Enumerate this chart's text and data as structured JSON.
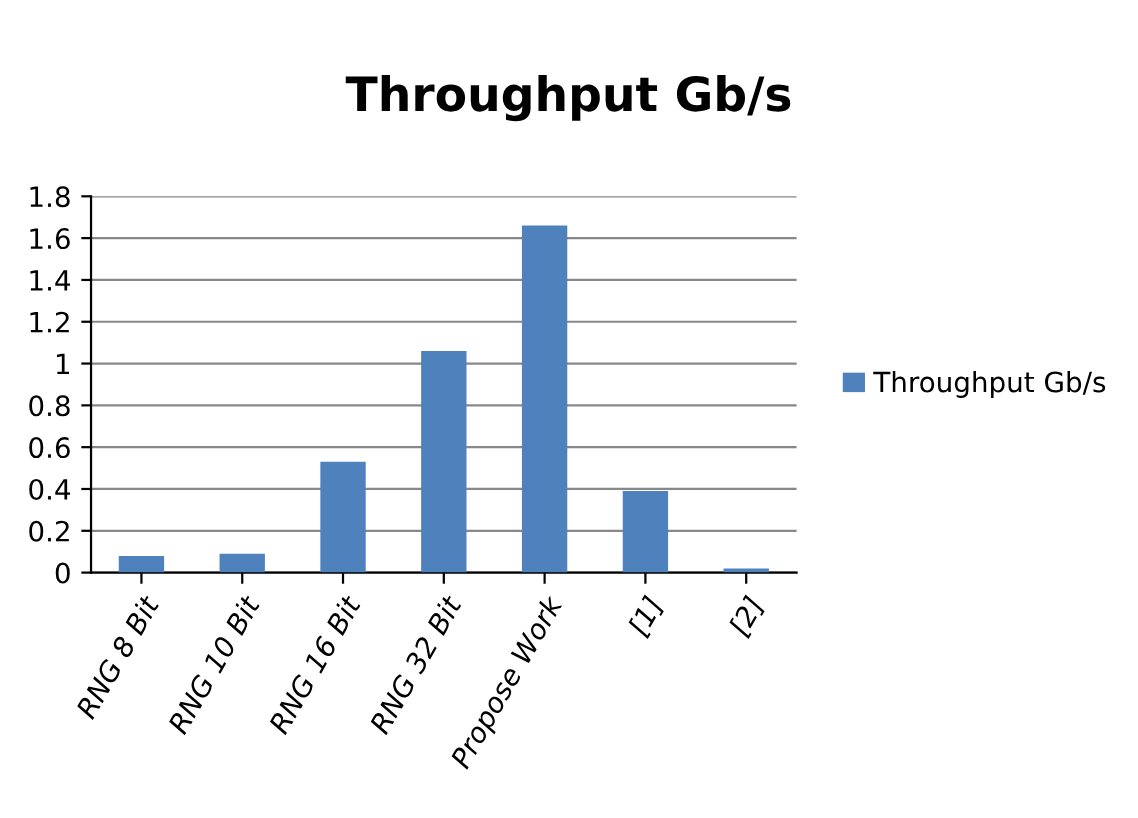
{
  "chart_data": {
    "type": "bar",
    "title": "Throughput Gb/s",
    "categories": [
      "RNG 8 Bit",
      "RNG 10 Bit",
      "RNG 16 Bit",
      "RNG 32 Bit",
      "Propose Work",
      "[1]",
      "[2]"
    ],
    "series": [
      {
        "name": "Throughput Gb/s",
        "color": "#4f81bd",
        "values": [
          0.08,
          0.09,
          0.53,
          1.06,
          1.66,
          0.39,
          0.02
        ]
      }
    ],
    "ylim": [
      0,
      1.8
    ],
    "yticks": [
      0,
      0.2,
      0.4,
      0.6,
      0.8,
      1,
      1.2,
      1.4,
      1.6,
      1.8
    ],
    "grid": "y",
    "legend": "right"
  }
}
